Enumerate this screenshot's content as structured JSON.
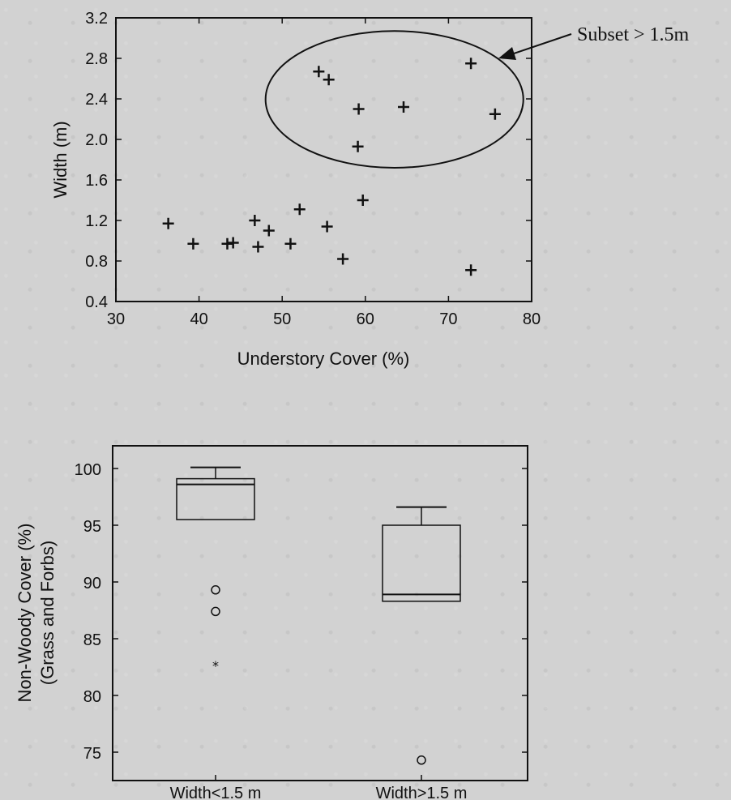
{
  "chart_data": [
    {
      "type": "scatter",
      "xlabel": "Understory Cover (%)",
      "ylabel": "Width (m)",
      "xlim": [
        30,
        80
      ],
      "ylim": [
        0.4,
        3.2
      ],
      "xticks": [
        "30",
        "40",
        "50",
        "60",
        "70",
        "80"
      ],
      "yticks": [
        "0.4",
        "0.8",
        "1.2",
        "1.6",
        "2.0",
        "2.4",
        "2.8",
        "3.2"
      ],
      "marker": "plus",
      "points": [
        {
          "x": 36.3,
          "y": 1.17
        },
        {
          "x": 39.3,
          "y": 0.97
        },
        {
          "x": 43.4,
          "y": 0.97
        },
        {
          "x": 44.1,
          "y": 0.98
        },
        {
          "x": 46.7,
          "y": 1.2
        },
        {
          "x": 47.1,
          "y": 0.94
        },
        {
          "x": 48.4,
          "y": 1.1
        },
        {
          "x": 51.0,
          "y": 0.97
        },
        {
          "x": 52.1,
          "y": 1.31
        },
        {
          "x": 55.4,
          "y": 1.14
        },
        {
          "x": 57.3,
          "y": 0.82
        },
        {
          "x": 59.7,
          "y": 1.4
        },
        {
          "x": 72.7,
          "y": 0.71
        },
        {
          "x": 54.4,
          "y": 2.67
        },
        {
          "x": 55.6,
          "y": 2.59
        },
        {
          "x": 59.2,
          "y": 2.3
        },
        {
          "x": 59.1,
          "y": 1.93
        },
        {
          "x": 64.6,
          "y": 2.32
        },
        {
          "x": 72.7,
          "y": 2.75
        },
        {
          "x": 75.6,
          "y": 2.25
        }
      ],
      "annotation": {
        "text": "Subset > 1.5m",
        "encircled_region": {
          "x": [
            48,
            79
          ],
          "y": [
            1.72,
            3.07
          ]
        }
      },
      "grid": false
    },
    {
      "type": "boxplot",
      "ylabel_lines": [
        "Non-Woody Cover (%)",
        "(Grass and Forbs)"
      ],
      "categories": [
        "Width<1.5 m",
        "Width>1.5 m"
      ],
      "ylim": [
        72.5,
        102
      ],
      "yticks": [
        "75",
        "80",
        "85",
        "90",
        "95",
        "100"
      ],
      "ytick_values": [
        75,
        80,
        85,
        90,
        95,
        100
      ],
      "boxes": [
        {
          "name": "Width<1.5 m",
          "whisker_low": 95.5,
          "q1": 95.5,
          "median": 98.6,
          "q3": 99.1,
          "whisker_high": 100.1,
          "outliers": [
            89.3,
            87.4
          ],
          "extremes": [
            82.7
          ]
        },
        {
          "name": "Width>1.5 m",
          "whisker_low": 88.3,
          "q1": 88.3,
          "median": 88.9,
          "q3": 95.0,
          "whisker_high": 96.6,
          "outliers": [
            74.3
          ],
          "extremes": []
        }
      ],
      "grid": false
    }
  ]
}
